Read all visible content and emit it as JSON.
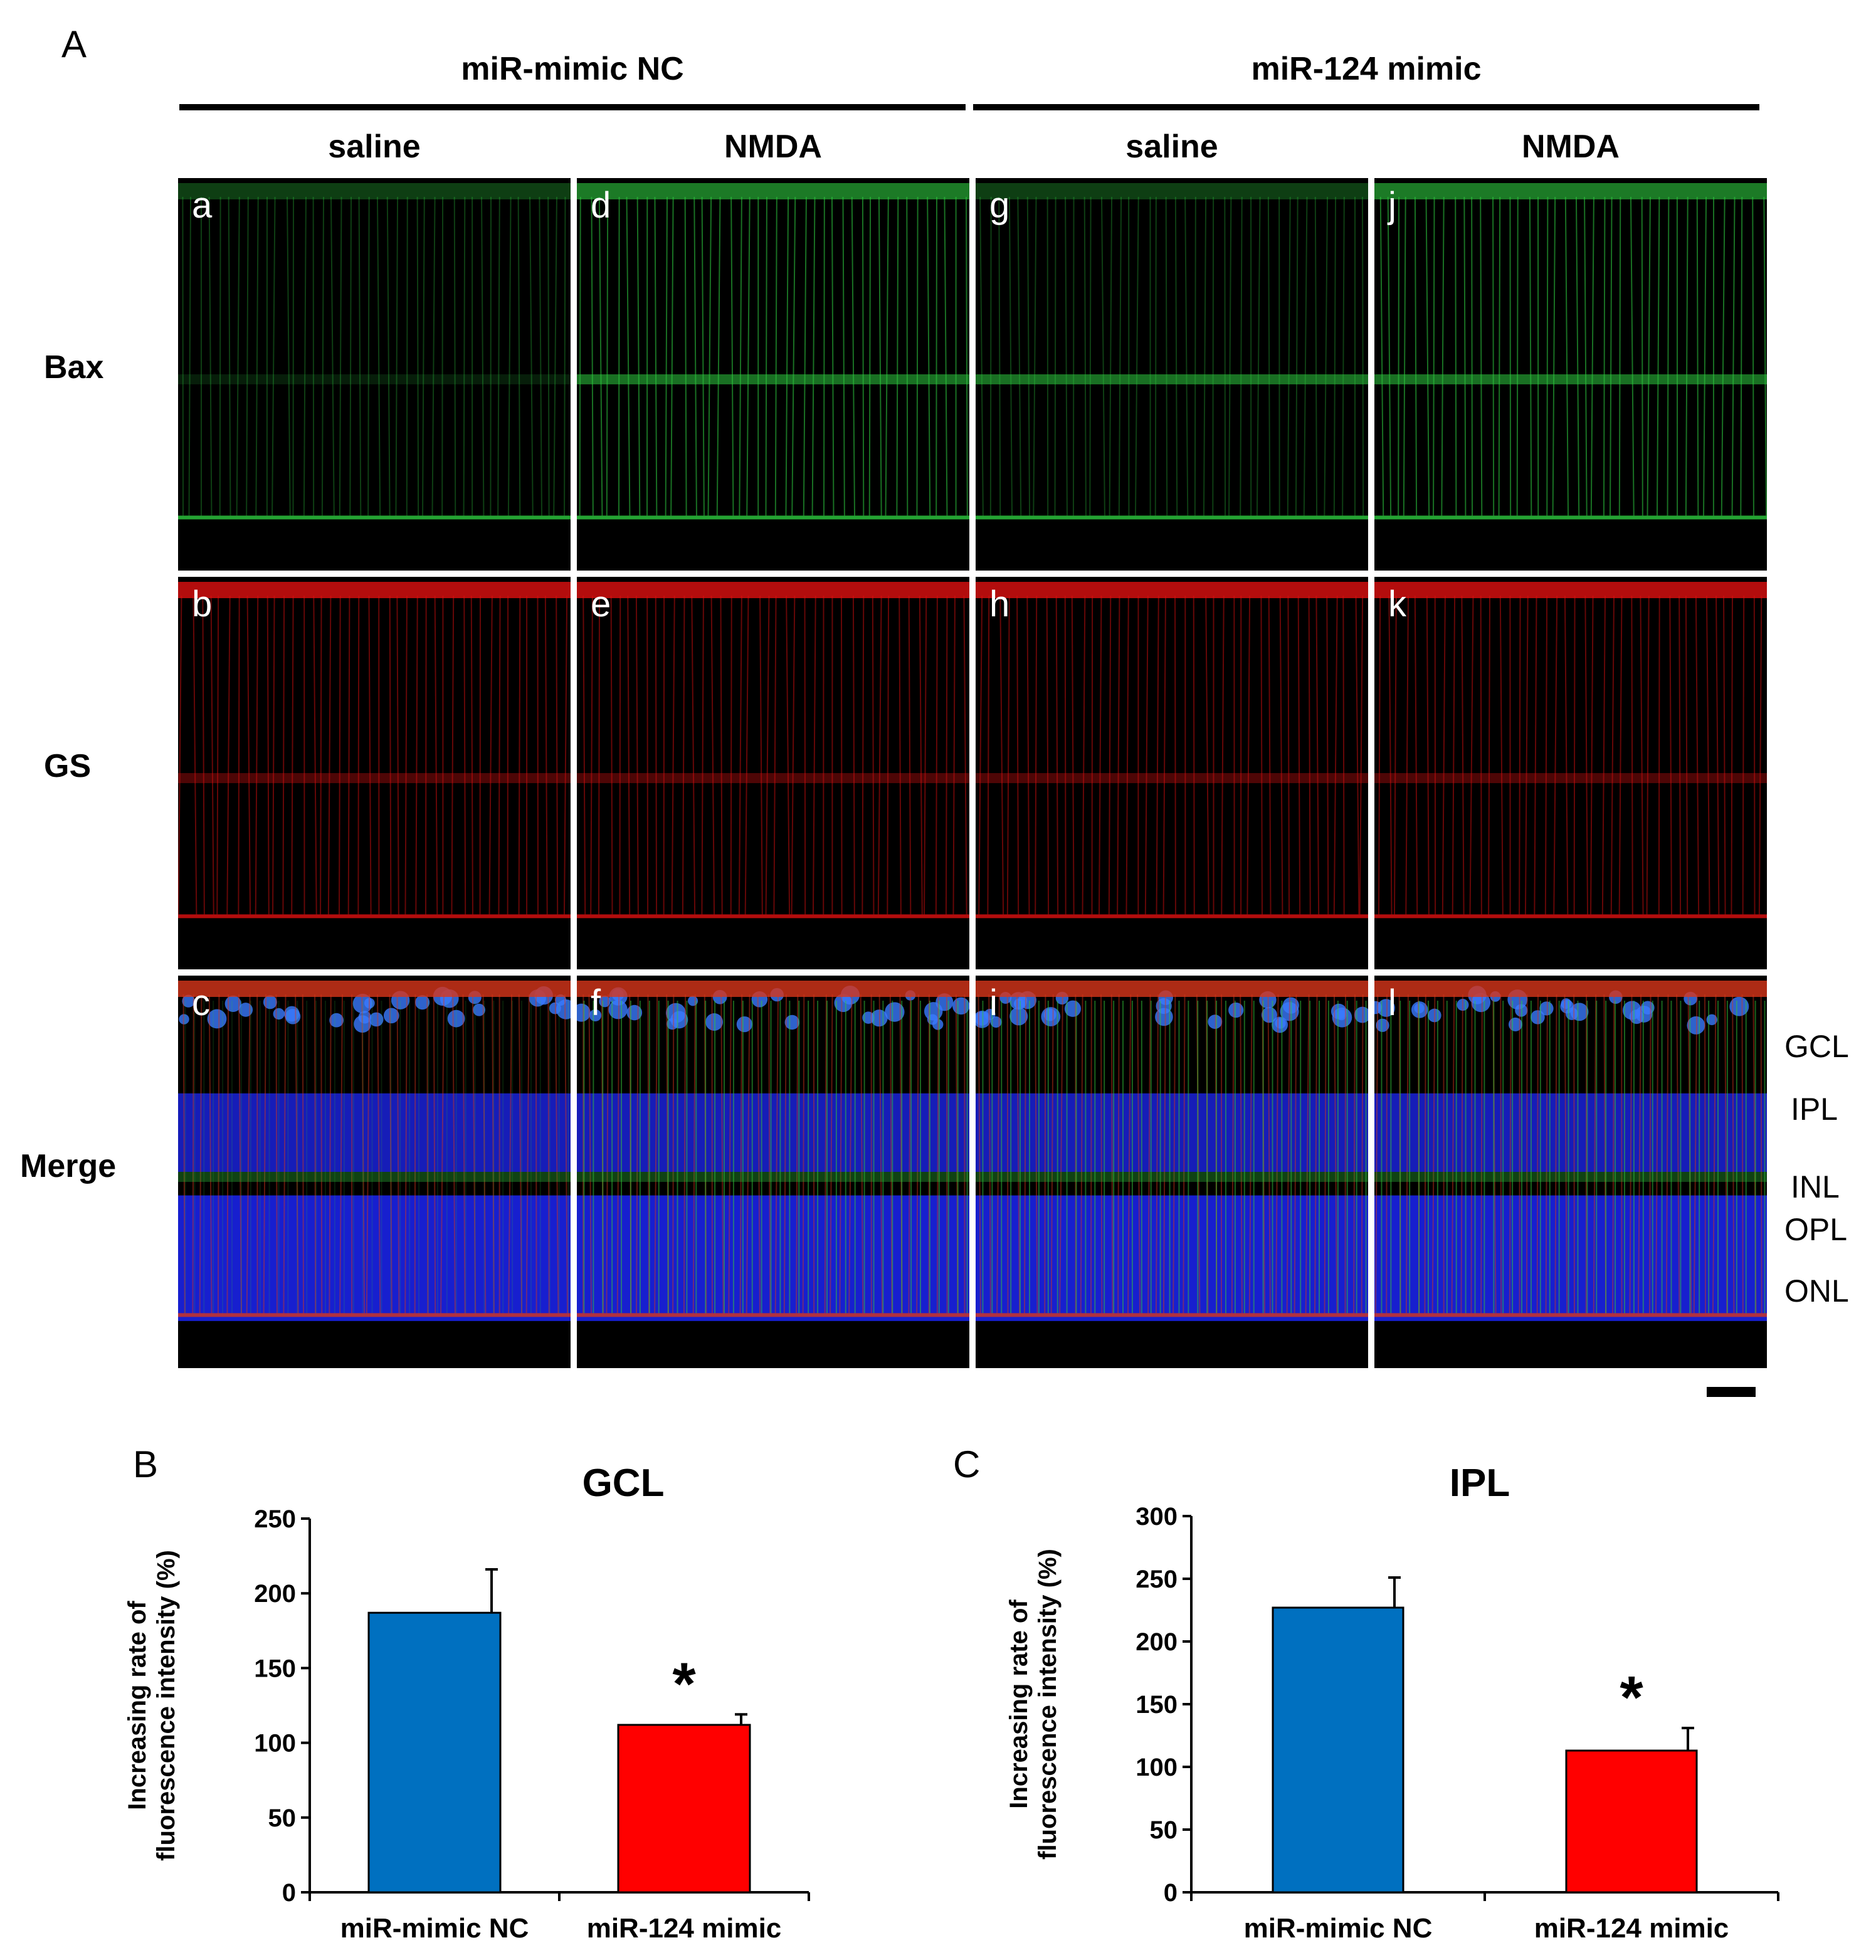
{
  "figure": {
    "panel_A_label": "A",
    "groups": [
      "miR-mimic NC",
      "miR-124 mimic"
    ],
    "conditions": [
      "saline",
      "NMDA",
      "saline",
      "NMDA"
    ],
    "rows": [
      {
        "label": "Bax",
        "channel": "green",
        "color": "#2ecc40"
      },
      {
        "label": "GS",
        "channel": "red",
        "color": "#e01010"
      },
      {
        "label": "Merge",
        "channel": "merge",
        "color": "#1b2cff"
      }
    ],
    "subpanel_letters": [
      [
        "a",
        "d",
        "g",
        "j"
      ],
      [
        "b",
        "e",
        "h",
        "k"
      ],
      [
        "c",
        "f",
        "i",
        "l"
      ]
    ],
    "layers": [
      "GCL",
      "IPL",
      "INL",
      "OPL",
      "ONL"
    ]
  },
  "chart_data": [
    {
      "panel": "B",
      "type": "bar",
      "title": "GCL",
      "ylabel": "Increasing rate of fluorescence intensity (%)",
      "ylabel_lines": [
        "Increasing rate of",
        "fluorescence intensity (%)"
      ],
      "categories": [
        "miR-mimic NC",
        "miR-124 mimic"
      ],
      "values": [
        187,
        112
      ],
      "errors": [
        29,
        7
      ],
      "colors": [
        "#0070c0",
        "#ff0000"
      ],
      "ylim": [
        0,
        250
      ],
      "yticks": [
        0,
        50,
        100,
        150,
        200,
        250
      ],
      "significance": [
        "",
        "*"
      ]
    },
    {
      "panel": "C",
      "type": "bar",
      "title": "IPL",
      "ylabel": "Increasing rate of fluorescence intensity (%)",
      "ylabel_lines": [
        "Increasing rate of",
        "fluorescence intensity (%)"
      ],
      "categories": [
        "miR-mimic NC",
        "miR-124 mimic"
      ],
      "values": [
        227,
        113
      ],
      "errors": [
        24,
        18
      ],
      "colors": [
        "#0070c0",
        "#ff0000"
      ],
      "ylim": [
        0,
        300
      ],
      "yticks": [
        0,
        50,
        100,
        150,
        200,
        250,
        300
      ],
      "significance": [
        "",
        "*"
      ]
    }
  ]
}
